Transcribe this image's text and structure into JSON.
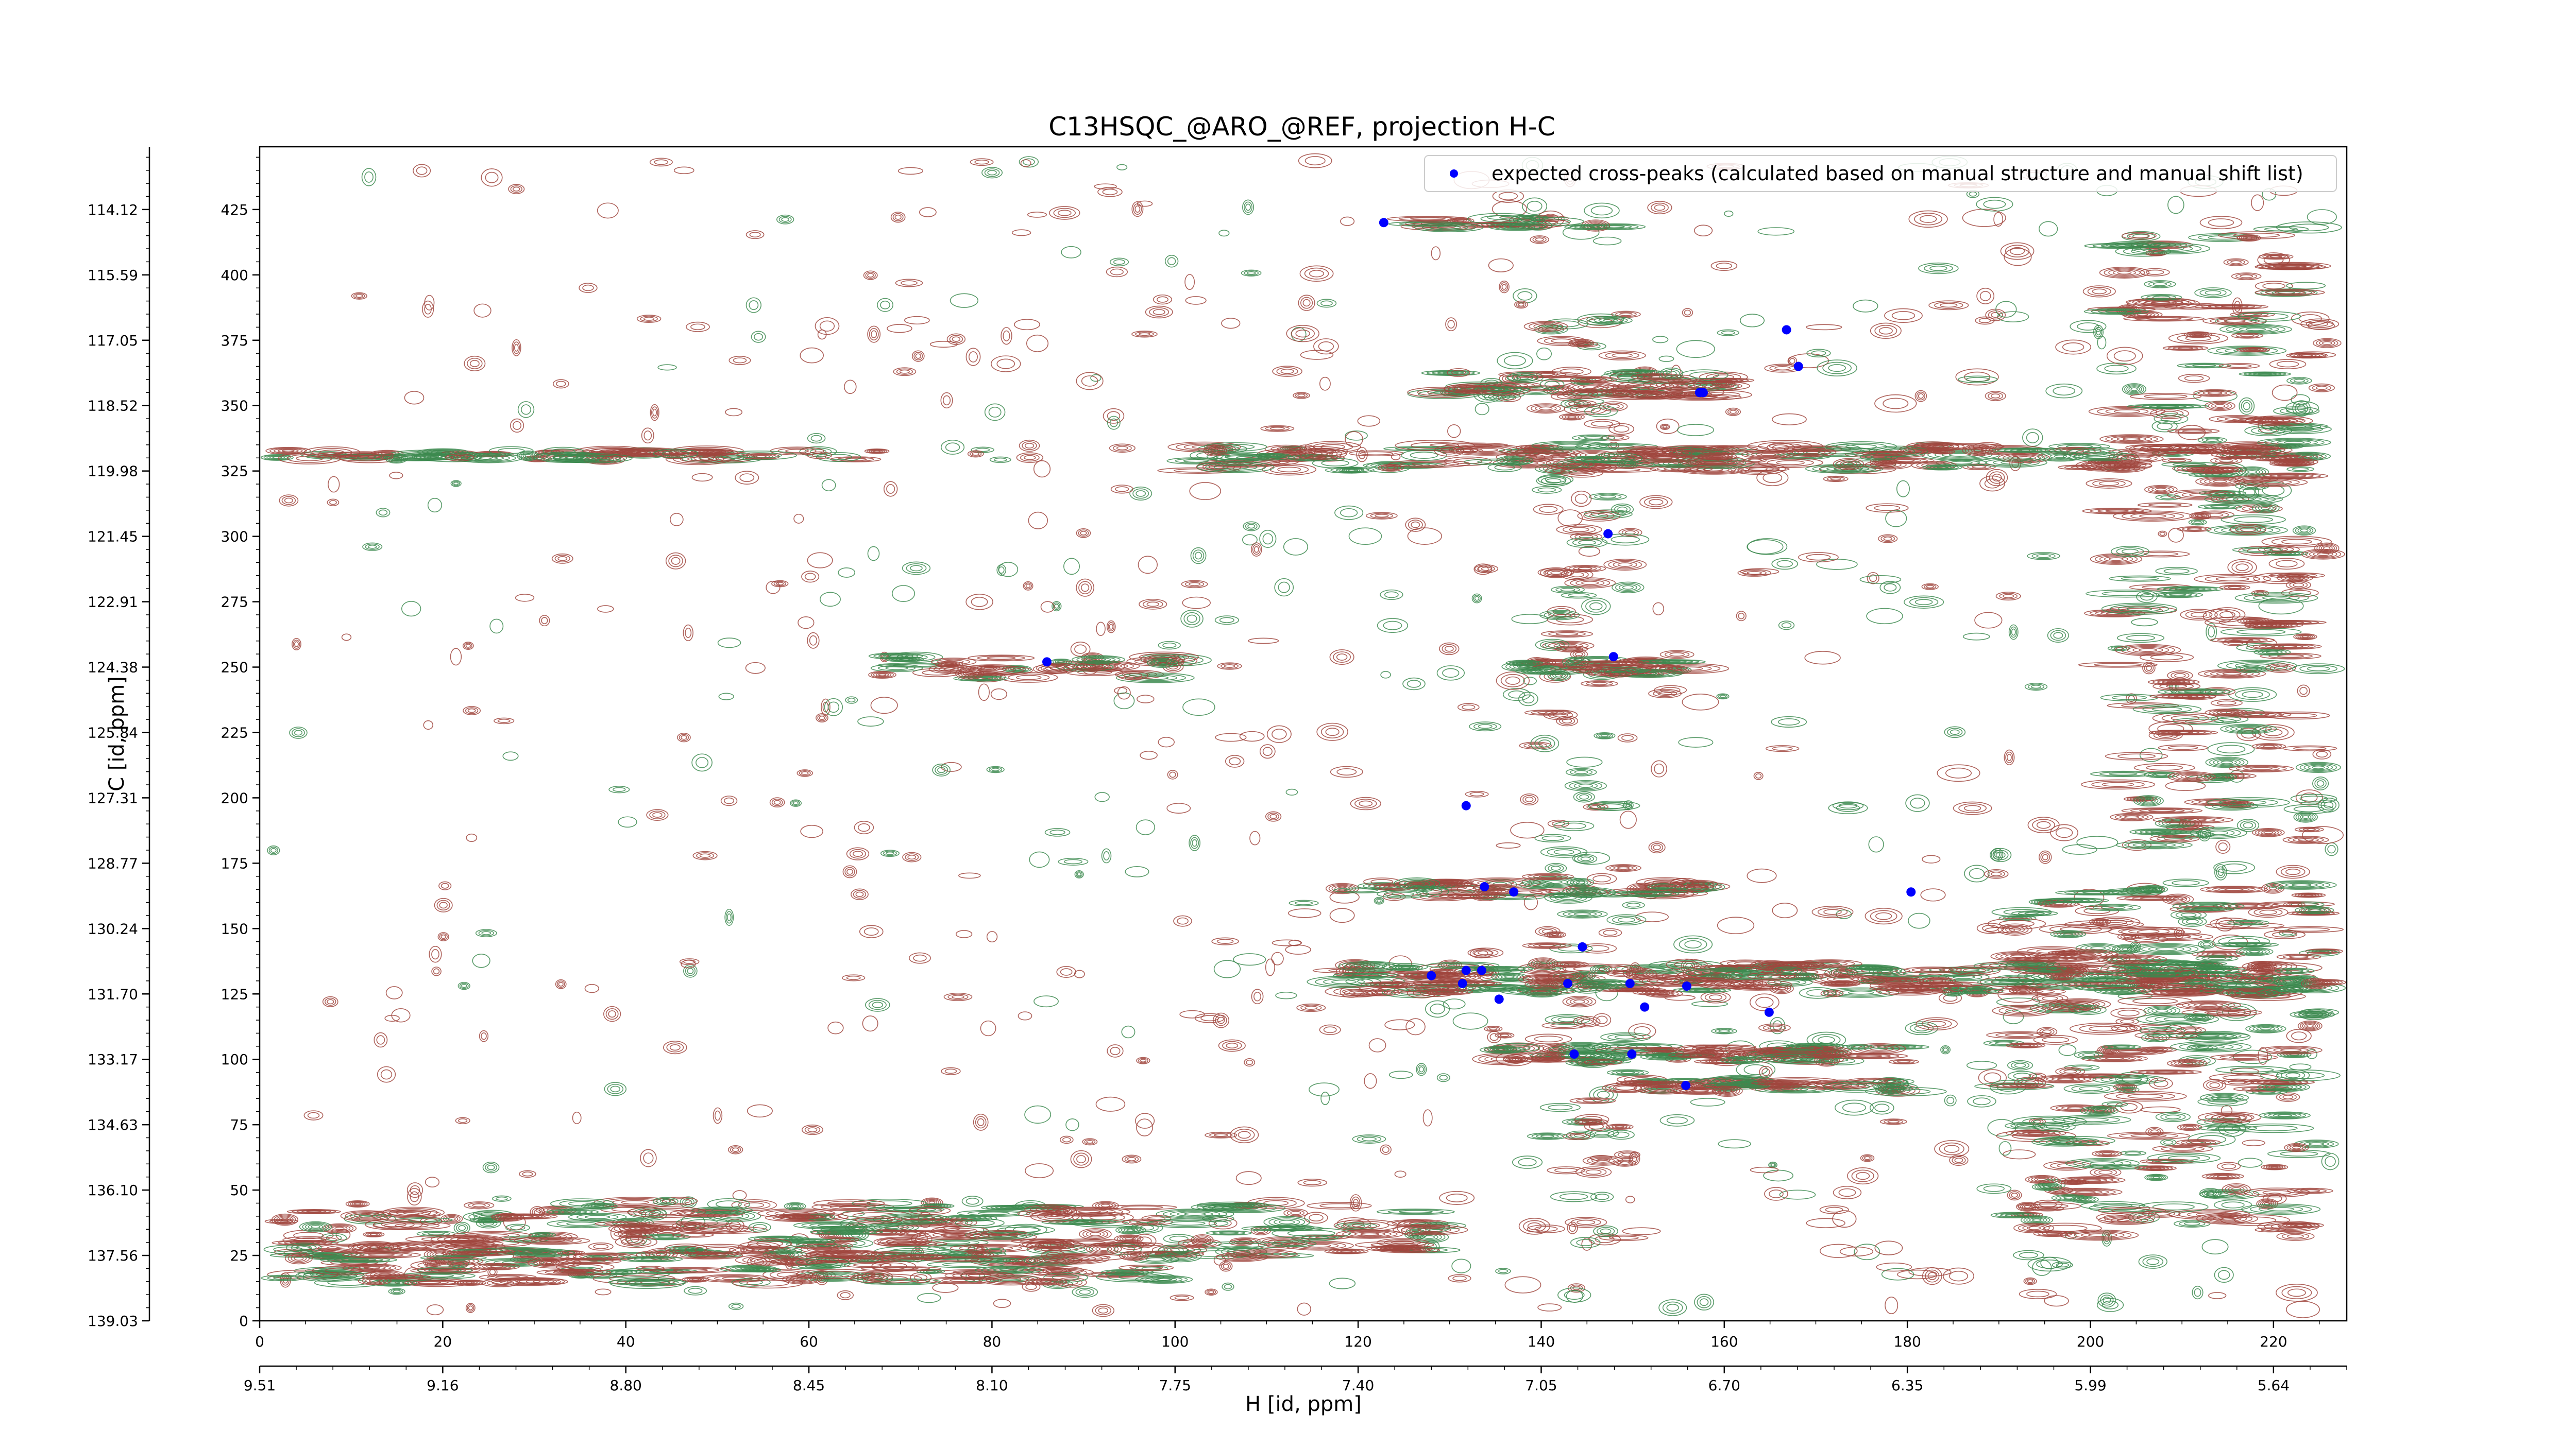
{
  "chart_data": {
    "type": "scatter",
    "title": "C13HSQC_@ARO_@REF, projection H-C",
    "xlabel": "H [id, ppm]",
    "ylabel": "C [id, ppm]",
    "xlim": [
      0,
      228
    ],
    "ylim": [
      0,
      449
    ],
    "x_index_ticks": [
      "0",
      "20",
      "40",
      "60",
      "80",
      "100",
      "120",
      "140",
      "160",
      "180",
      "200",
      "220"
    ],
    "x_ppm_ticks": [
      "9.51",
      "9.16",
      "8.80",
      "8.45",
      "8.10",
      "7.75",
      "7.40",
      "7.05",
      "6.70",
      "6.35",
      "5.99",
      "5.64"
    ],
    "y_index_ticks": [
      "0",
      "25",
      "50",
      "75",
      "100",
      "125",
      "150",
      "175",
      "200",
      "225",
      "250",
      "275",
      "300",
      "325",
      "350",
      "375",
      "400",
      "425"
    ],
    "y_ppm_ticks": [
      "139.03",
      "137.56",
      "136.10",
      "134.63",
      "133.17",
      "131.70",
      "130.24",
      "128.77",
      "127.31",
      "125.84",
      "124.38",
      "122.91",
      "121.45",
      "119.98",
      "118.52",
      "117.05",
      "115.59",
      "114.12"
    ],
    "contour_colors": {
      "positive": "#a0463e",
      "negative": "#3c8a4f"
    },
    "grid": false,
    "legend_position": "top-right",
    "series": [
      {
        "name": "expected cross-peaks (calculated based on manual structure and manual shift list)",
        "color": "#0000ff",
        "marker": "circle",
        "points": [
          [
            122.8,
            420
          ],
          [
            166.8,
            379
          ],
          [
            168.1,
            365
          ],
          [
            157.3,
            355
          ],
          [
            157.7,
            355
          ],
          [
            147.3,
            301
          ],
          [
            86.0,
            252
          ],
          [
            147.9,
            254
          ],
          [
            131.8,
            197
          ],
          [
            133.8,
            166
          ],
          [
            137.0,
            164
          ],
          [
            180.4,
            164
          ],
          [
            144.5,
            143
          ],
          [
            131.8,
            134
          ],
          [
            133.5,
            134
          ],
          [
            128.0,
            132
          ],
          [
            131.4,
            129
          ],
          [
            142.9,
            129
          ],
          [
            149.7,
            129
          ],
          [
            155.9,
            128
          ],
          [
            135.4,
            123
          ],
          [
            151.3,
            120
          ],
          [
            164.9,
            118
          ],
          [
            143.6,
            102
          ],
          [
            149.9,
            102
          ],
          [
            155.8,
            90
          ]
        ]
      }
    ]
  }
}
